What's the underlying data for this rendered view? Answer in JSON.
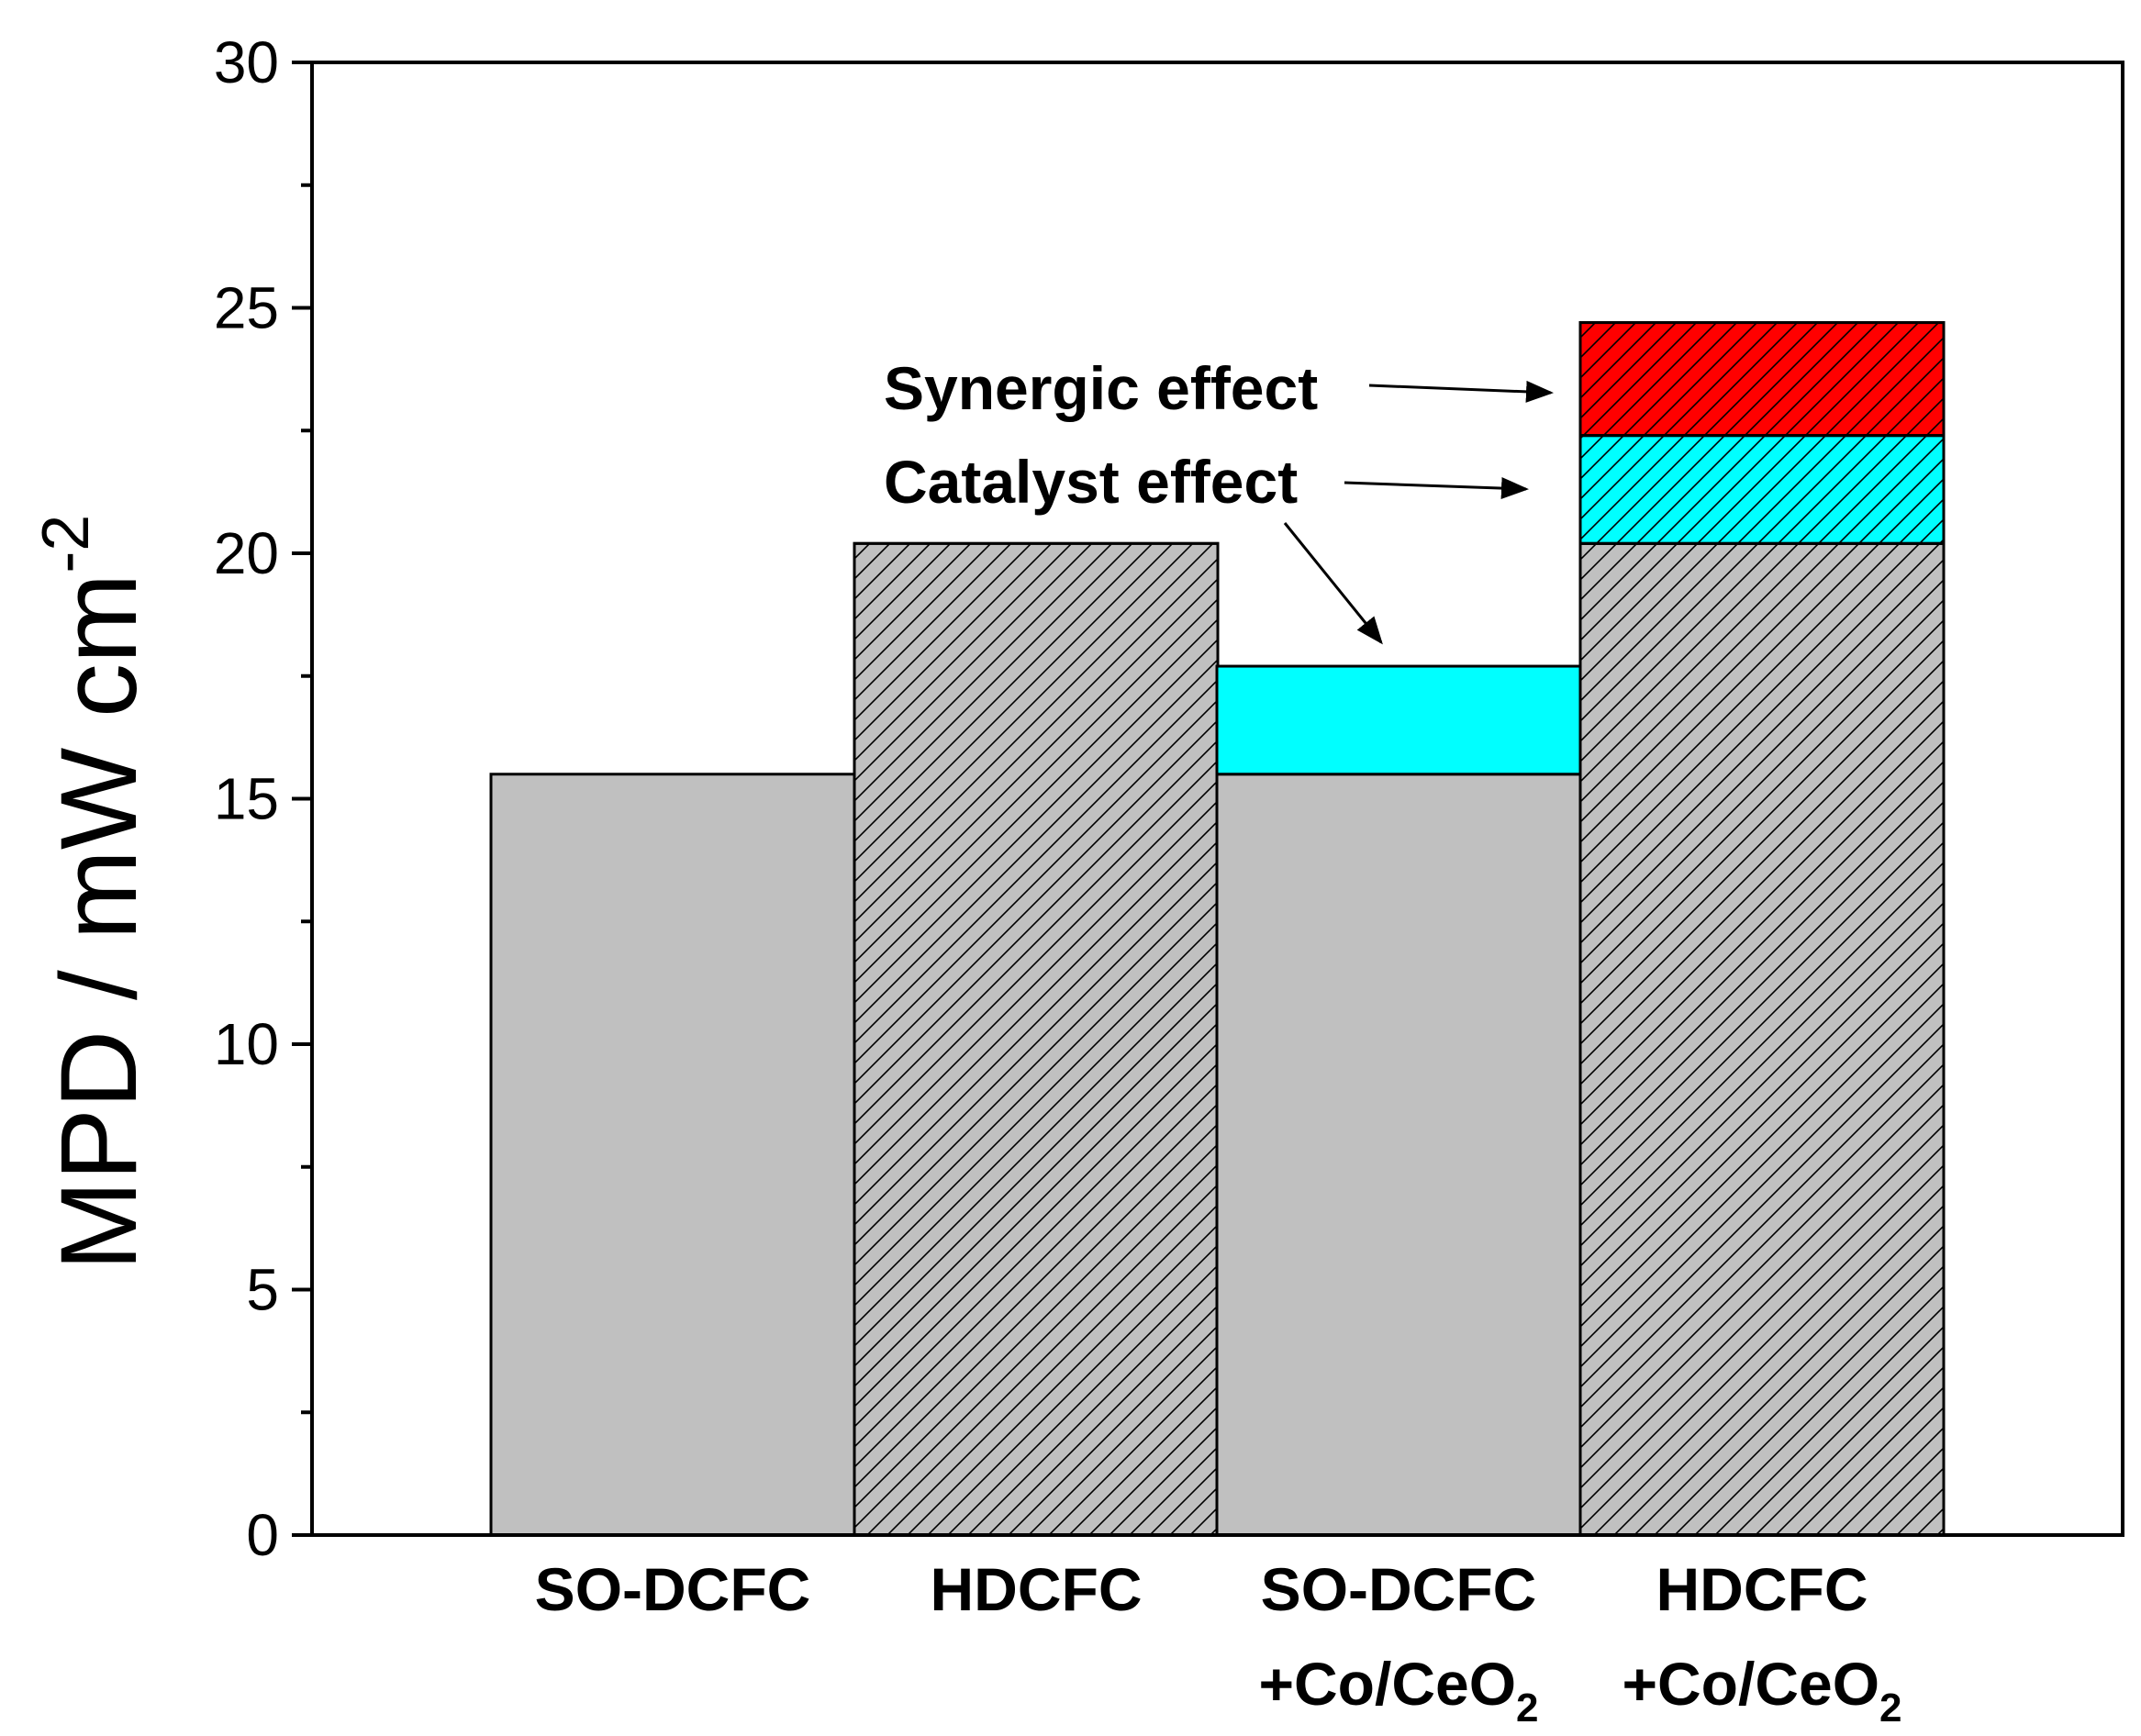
{
  "chart_data": {
    "type": "bar",
    "stacked": true,
    "title": "",
    "xlabel": "",
    "ylabel": "MPD / mW cm",
    "ylabel_superscript": "-2",
    "ylim": [
      0,
      30
    ],
    "yticks_major": [
      0,
      5,
      10,
      15,
      20,
      25,
      30
    ],
    "yticks_minor": [
      2.5,
      7.5,
      12.5,
      17.5,
      22.5,
      27.5
    ],
    "categories": [
      {
        "line1": "SO-DCFC",
        "line2": "",
        "line2_subscript": ""
      },
      {
        "line1": "HDCFC",
        "line2": "",
        "line2_subscript": ""
      },
      {
        "line1": "SO-DCFC",
        "line2": "+Co/CeO",
        "line2_subscript": "2"
      },
      {
        "line1": "HDCFC",
        "line2": "+Co/CeO",
        "line2_subscript": "2"
      }
    ],
    "bars": [
      {
        "category": "SO-DCFC",
        "segments": [
          {
            "from": 0,
            "to": 15.5,
            "color": "#c0c0c0",
            "hatched": false
          }
        ]
      },
      {
        "category": "HDCFC",
        "segments": [
          {
            "from": 0,
            "to": 20.2,
            "color": "#c0c0c0",
            "hatched": true
          }
        ]
      },
      {
        "category": "SO-DCFC +Co/CeO2",
        "segments": [
          {
            "from": 0,
            "to": 15.5,
            "color": "#c0c0c0",
            "hatched": false
          },
          {
            "from": 15.5,
            "to": 17.7,
            "color": "#00ffff",
            "hatched": false
          }
        ]
      },
      {
        "category": "HDCFC +Co/CeO2",
        "segments": [
          {
            "from": 0,
            "to": 20.2,
            "color": "#c0c0c0",
            "hatched": true
          },
          {
            "from": 20.2,
            "to": 22.4,
            "color": "#00ffff",
            "hatched": true
          },
          {
            "from": 22.4,
            "to": 24.7,
            "color": "#ff0000",
            "hatched": true
          }
        ]
      }
    ],
    "annotations": [
      {
        "text": "Synergic effect",
        "target": "HDCFC +Co/CeO2 red segment"
      },
      {
        "text": "Catalyst effect",
        "target": "HDCFC +Co/CeO2 cyan segment and SO-DCFC +Co/CeO2 cyan segment"
      }
    ]
  }
}
